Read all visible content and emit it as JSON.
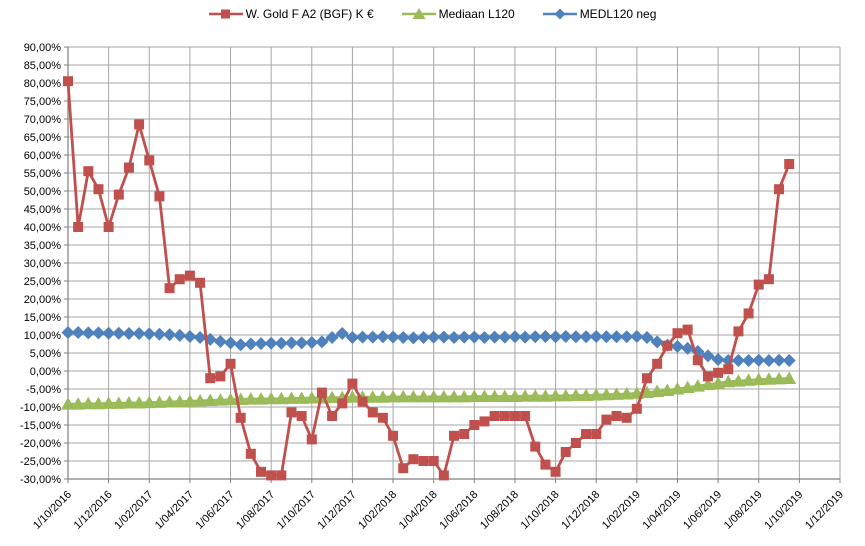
{
  "chart_data": {
    "type": "line",
    "title": "",
    "legend_position": "top",
    "grid": true,
    "x_axis_note": "semi-monthly samples (1st and 15th of each month)",
    "y_axis": {
      "min": -30,
      "max": 90,
      "step": 5
    },
    "y_tick_labels": [
      "90,00%",
      "85,00%",
      "80,00%",
      "75,00%",
      "70,00%",
      "65,00%",
      "60,00%",
      "55,00%",
      "50,00%",
      "45,00%",
      "40,00%",
      "35,00%",
      "30,00%",
      "25,00%",
      "20,00%",
      "15,00%",
      "10,00%",
      "5,00%",
      "0,00%",
      "-5,00%",
      "-10,00%",
      "-15,00%",
      "-20,00%",
      "-25,00%",
      "-30,00%"
    ],
    "x_tick_labels": [
      "1/10/2016",
      "1/12/2016",
      "1/02/2017",
      "1/04/2017",
      "1/06/2017",
      "1/08/2017",
      "1/10/2017",
      "1/12/2017",
      "1/02/2018",
      "1/04/2018",
      "1/06/2018",
      "1/08/2018",
      "1/10/2018",
      "1/12/2018",
      "1/02/2019",
      "1/04/2019",
      "1/06/2019",
      "1/08/2019",
      "1/10/2019",
      "1/12/2019"
    ],
    "dates": [
      "1/10/2016",
      "15/10/2016",
      "1/11/2016",
      "15/11/2016",
      "1/12/2016",
      "15/12/2016",
      "1/01/2017",
      "15/01/2017",
      "1/02/2017",
      "15/02/2017",
      "1/03/2017",
      "15/03/2017",
      "1/04/2017",
      "15/04/2017",
      "1/05/2017",
      "15/05/2017",
      "1/06/2017",
      "15/06/2017",
      "1/07/2017",
      "15/07/2017",
      "1/08/2017",
      "15/08/2017",
      "1/09/2017",
      "15/09/2017",
      "1/10/2017",
      "15/10/2017",
      "1/11/2017",
      "15/11/2017",
      "1/12/2017",
      "15/12/2017",
      "1/01/2018",
      "15/01/2018",
      "1/02/2018",
      "15/02/2018",
      "1/03/2018",
      "15/03/2018",
      "1/04/2018",
      "15/04/2018",
      "1/05/2018",
      "15/05/2018",
      "1/06/2018",
      "15/06/2018",
      "1/07/2018",
      "15/07/2018",
      "1/08/2018",
      "15/08/2018",
      "1/09/2018",
      "15/09/2018",
      "1/10/2018",
      "15/10/2018",
      "1/11/2018",
      "15/11/2018",
      "1/12/2018",
      "15/12/2018",
      "1/01/2019",
      "15/01/2019",
      "1/02/2019",
      "15/02/2019",
      "1/03/2019",
      "15/03/2019",
      "1/04/2019",
      "15/04/2019",
      "1/05/2019",
      "15/05/2019",
      "1/06/2019",
      "15/06/2019",
      "1/07/2019",
      "15/07/2019",
      "1/08/2019",
      "15/08/2019",
      "1/09/2019",
      "15/09/2019"
    ],
    "series": [
      {
        "name": "W. Gold F A2 (BGF) K €",
        "color": "#C0504D",
        "marker": "square",
        "values": [
          80.5,
          40,
          55.5,
          50.5,
          40,
          49,
          56.5,
          68.5,
          58.5,
          48.5,
          23,
          25.5,
          26.5,
          24.5,
          -2,
          -1.5,
          2,
          -13,
          -23,
          -28,
          -29,
          -29,
          -11.5,
          -12.5,
          -19,
          -6,
          -12.5,
          -9,
          -3.5,
          -8.5,
          -11.5,
          -13,
          -18,
          -27,
          -24.5,
          -25,
          -25,
          -29,
          -18,
          -17.5,
          -15,
          -14,
          -12.5,
          -12.5,
          -12.5,
          -12.5,
          -21,
          -26,
          -28,
          -22.5,
          -20,
          -17.5,
          -17.5,
          -13.5,
          -12.5,
          -13,
          -10.5,
          -2,
          2,
          7,
          10.5,
          11.5,
          3,
          -1.5,
          -0.5,
          0.5,
          11,
          16,
          24,
          25.5,
          50.5,
          57.5
        ]
      },
      {
        "name": "Mediaan L120",
        "color": "#9BBB59",
        "marker": "triangle",
        "values": [
          -9.2,
          -9.2,
          -9.1,
          -9.1,
          -9,
          -9,
          -8.9,
          -8.9,
          -8.8,
          -8.7,
          -8.6,
          -8.5,
          -8.4,
          -8.3,
          -8.2,
          -8.1,
          -8,
          -7.9,
          -7.8,
          -7.8,
          -7.7,
          -7.7,
          -7.6,
          -7.6,
          -7.5,
          -7.5,
          -7.4,
          -7.4,
          -7.3,
          -7.3,
          -7.3,
          -7.3,
          -7.2,
          -7.2,
          -7.2,
          -7.2,
          -7.2,
          -7.2,
          -7.2,
          -7.2,
          -7.1,
          -7.1,
          -7.1,
          -7.1,
          -7.1,
          -7,
          -7,
          -7,
          -6.9,
          -6.9,
          -6.8,
          -6.8,
          -6.7,
          -6.6,
          -6.5,
          -6.4,
          -6.2,
          -6,
          -5.7,
          -5.4,
          -5,
          -4.6,
          -4.2,
          -3.8,
          -3.4,
          -3,
          -2.8,
          -2.6,
          -2.4,
          -2.3,
          -2.2,
          -2.1
        ]
      },
      {
        "name": "MEDL120 neg",
        "color": "#4F81BD",
        "marker": "diamond",
        "values": [
          10.7,
          10.7,
          10.6,
          10.6,
          10.5,
          10.5,
          10.4,
          10.4,
          10.3,
          10.2,
          10.1,
          9.9,
          9.6,
          9.3,
          8.8,
          8.2,
          7.8,
          7.3,
          7.5,
          7.6,
          7.7,
          7.7,
          7.8,
          7.8,
          7.9,
          8.1,
          9.3,
          10.4,
          9.3,
          9.4,
          9.4,
          9.5,
          9.4,
          9.3,
          9.2,
          9.3,
          9.4,
          9.4,
          9.3,
          9.4,
          9.4,
          9.3,
          9.4,
          9.4,
          9.5,
          9.4,
          9.5,
          9.6,
          9.5,
          9.6,
          9.5,
          9.5,
          9.6,
          9.5,
          9.5,
          9.5,
          9.6,
          9.3,
          8.1,
          7.2,
          6.8,
          6.3,
          5.4,
          4.2,
          3.2,
          2.9,
          2.9,
          2.9,
          3,
          2.9,
          3,
          2.9
        ]
      }
    ],
    "colors": {
      "grid": "#A6A6A6",
      "axis": "#808080",
      "text": "#000000",
      "background": "#FFFFFF"
    }
  }
}
